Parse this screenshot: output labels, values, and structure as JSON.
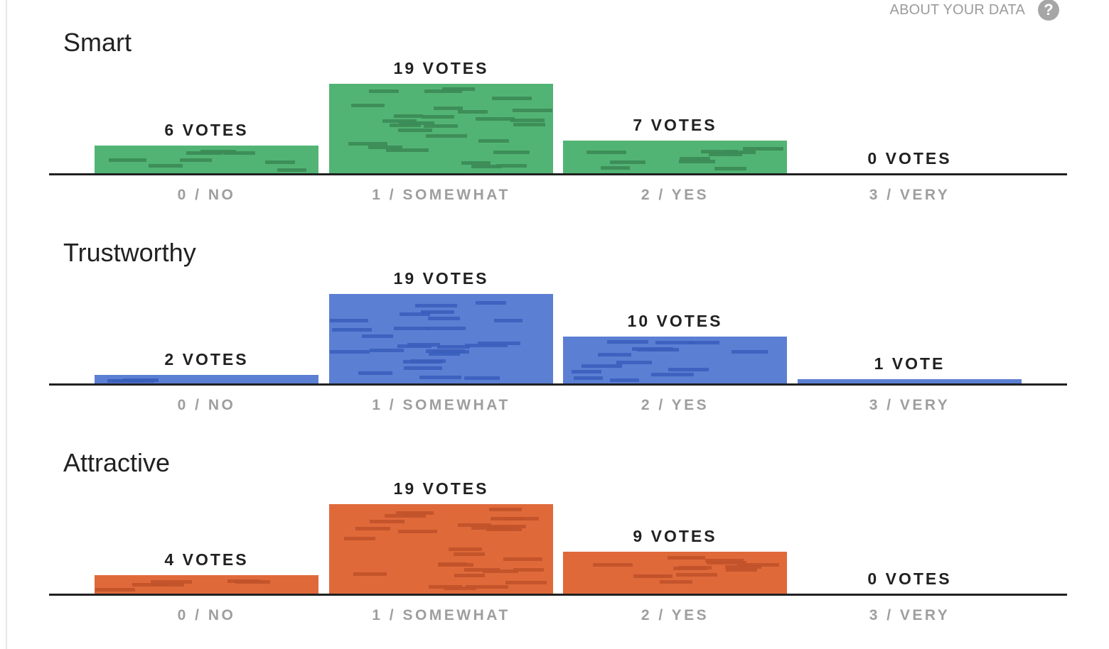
{
  "header": {
    "about_label": "ABOUT YOUR DATA",
    "help_icon": "question-circle-icon"
  },
  "chart_data": [
    {
      "type": "bar",
      "title": "Smart",
      "categories": [
        "0 / NO",
        "1 / SOMEWHAT",
        "2 / YES",
        "3 / VERY"
      ],
      "values": [
        6,
        19,
        7,
        0
      ],
      "value_labels": [
        "6 VOTES",
        "19 VOTES",
        "7 VOTES",
        "0 VOTES"
      ],
      "ylim": [
        0,
        19
      ],
      "color": "#52b474",
      "mark_color": "#3b8a56"
    },
    {
      "type": "bar",
      "title": "Trustworthy",
      "categories": [
        "0 / NO",
        "1 / SOMEWHAT",
        "2 / YES",
        "3 / VERY"
      ],
      "values": [
        2,
        19,
        10,
        1
      ],
      "value_labels": [
        "2 VOTES",
        "19 VOTES",
        "10 VOTES",
        "1 VOTE"
      ],
      "ylim": [
        0,
        19
      ],
      "color": "#5b7fd3",
      "mark_color": "#3a5fbd"
    },
    {
      "type": "bar",
      "title": "Attractive",
      "categories": [
        "0 / NO",
        "1 / SOMEWHAT",
        "2 / YES",
        "3 / VERY"
      ],
      "values": [
        4,
        19,
        9,
        0
      ],
      "value_labels": [
        "4 VOTES",
        "19 VOTES",
        "9 VOTES",
        "0 VOTES"
      ],
      "ylim": [
        0,
        19
      ],
      "color": "#e0693a",
      "mark_color": "#c1522a"
    }
  ]
}
